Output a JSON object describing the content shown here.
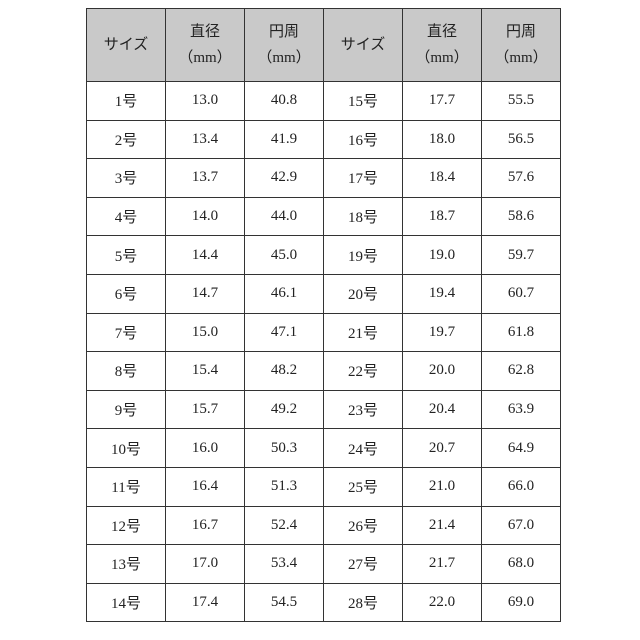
{
  "table": {
    "header": [
      {
        "title": "サイズ"
      },
      {
        "title": "直径",
        "unit": "（mm）"
      },
      {
        "title": "円周",
        "unit": "（mm）"
      },
      {
        "title": "サイズ"
      },
      {
        "title": "直径",
        "unit": "（mm）"
      },
      {
        "title": "円周",
        "unit": "（mm）"
      }
    ],
    "rows": [
      [
        "1号",
        "13.0",
        "40.8",
        "15号",
        "17.7",
        "55.5"
      ],
      [
        "2号",
        "13.4",
        "41.9",
        "16号",
        "18.0",
        "56.5"
      ],
      [
        "3号",
        "13.7",
        "42.9",
        "17号",
        "18.4",
        "57.6"
      ],
      [
        "4号",
        "14.0",
        "44.0",
        "18号",
        "18.7",
        "58.6"
      ],
      [
        "5号",
        "14.4",
        "45.0",
        "19号",
        "19.0",
        "59.7"
      ],
      [
        "6号",
        "14.7",
        "46.1",
        "20号",
        "19.4",
        "60.7"
      ],
      [
        "7号",
        "15.0",
        "47.1",
        "21号",
        "19.7",
        "61.8"
      ],
      [
        "8号",
        "15.4",
        "48.2",
        "22号",
        "20.0",
        "62.8"
      ],
      [
        "9号",
        "15.7",
        "49.2",
        "23号",
        "20.4",
        "63.9"
      ],
      [
        "10号",
        "16.0",
        "50.3",
        "24号",
        "20.7",
        "64.9"
      ],
      [
        "11号",
        "16.4",
        "51.3",
        "25号",
        "21.0",
        "66.0"
      ],
      [
        "12号",
        "16.7",
        "52.4",
        "26号",
        "21.4",
        "67.0"
      ],
      [
        "13号",
        "17.0",
        "53.4",
        "27号",
        "21.7",
        "68.0"
      ],
      [
        "14号",
        "17.4",
        "54.5",
        "28号",
        "22.0",
        "69.0"
      ]
    ]
  }
}
